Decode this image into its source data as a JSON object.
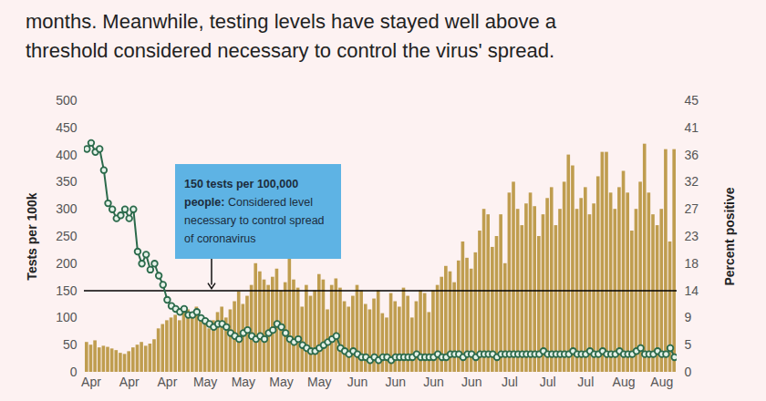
{
  "chart_data": {
    "type": "bar",
    "subtitle": "months. Meanwhile, testing levels have stayed well above a threshold considered necessary to control the virus' spread.",
    "categories": [
      null,
      "Apr",
      null,
      null,
      null,
      null,
      null,
      null,
      null,
      null,
      "Apr",
      null,
      null,
      null,
      null,
      null,
      null,
      null,
      null,
      "Apr",
      null,
      null,
      null,
      null,
      null,
      null,
      null,
      null,
      "May",
      null,
      null,
      null,
      null,
      null,
      null,
      null,
      null,
      "May",
      null,
      null,
      null,
      null,
      null,
      null,
      null,
      null,
      "May",
      null,
      null,
      null,
      null,
      null,
      null,
      null,
      null,
      "May",
      null,
      null,
      null,
      null,
      null,
      null,
      null,
      null,
      "Jun",
      null,
      null,
      null,
      null,
      null,
      null,
      null,
      null,
      "Jun",
      null,
      null,
      null,
      null,
      null,
      null,
      null,
      null,
      "Jun",
      null,
      null,
      null,
      null,
      null,
      null,
      null,
      null,
      "Jun",
      null,
      null,
      null,
      null,
      null,
      null,
      null,
      null,
      "Jul",
      null,
      null,
      null,
      null,
      null,
      null,
      null,
      null,
      "Jul",
      null,
      null,
      null,
      null,
      null,
      null,
      null,
      null,
      "Jul",
      null,
      null,
      null,
      null,
      null,
      null,
      null,
      null,
      "Aug",
      null,
      null,
      null,
      null,
      null,
      null,
      null,
      null,
      "Aug",
      null,
      null,
      null
    ],
    "series": [
      {
        "name": "Tests per 100k",
        "type": "bar",
        "color": "#bf9d4f",
        "values": [
          55,
          50,
          58,
          45,
          48,
          46,
          43,
          40,
          35,
          33,
          38,
          45,
          50,
          55,
          48,
          52,
          60,
          80,
          88,
          95,
          100,
          105,
          95,
          110,
          115,
          100,
          120,
          105,
          90,
          80,
          95,
          110,
          120,
          100,
          115,
          130,
          148,
          125,
          140,
          160,
          200,
          185,
          170,
          160,
          175,
          190,
          150,
          165,
          210,
          170,
          155,
          120,
          160,
          140,
          150,
          180,
          170,
          115,
          160,
          172,
          155,
          130,
          120,
          140,
          160,
          150,
          125,
          115,
          135,
          150,
          108,
          100,
          145,
          130,
          120,
          155,
          140,
          100,
          130,
          150,
          145,
          110,
          150,
          160,
          175,
          195,
          185,
          165,
          205,
          240,
          210,
          190,
          220,
          260,
          300,
          290,
          230,
          250,
          290,
          200,
          330,
          350,
          300,
          270,
          310,
          330,
          305,
          250,
          290,
          320,
          340,
          270,
          300,
          350,
          400,
          380,
          300,
          320,
          340,
          290,
          310,
          360,
          405,
          405,
          330,
          300,
          340,
          370,
          330,
          260,
          300,
          350,
          420,
          330,
          290,
          270,
          300,
          410,
          240,
          410
        ]
      },
      {
        "name": "Percent positive",
        "type": "line",
        "axis": "y2",
        "color": "#2b6a4b",
        "marker": "circle",
        "line_style": "solid",
        "values": [
          37,
          38,
          36.5,
          37,
          33.5,
          28,
          27,
          25.5,
          26,
          27,
          25.5,
          27,
          20,
          18,
          19.5,
          17,
          18,
          16,
          14.5,
          12,
          11,
          10.5,
          10,
          10.5,
          9.5,
          9.5,
          10,
          9,
          8.5,
          8,
          7.5,
          8,
          8,
          7.5,
          6.5,
          6,
          5.5,
          6.5,
          7,
          6,
          5.5,
          6,
          5.5,
          6.5,
          7,
          8,
          7.5,
          6.5,
          5.5,
          5,
          5.5,
          4.5,
          4,
          3.5,
          3.5,
          4,
          4.5,
          5,
          5.5,
          6,
          4,
          3.5,
          3,
          3.5,
          3,
          2.5,
          2.5,
          2,
          2.5,
          2,
          2.5,
          2.5,
          2,
          2.5,
          2.5,
          2.5,
          2.5,
          2.5,
          3,
          2.5,
          2.5,
          2.5,
          2.5,
          3,
          2.5,
          2.5,
          3,
          3,
          3,
          2.5,
          3,
          3,
          2.5,
          3,
          3,
          3,
          3,
          2.5,
          3,
          3,
          3,
          3,
          3,
          3,
          3,
          3,
          3,
          3,
          3.5,
          3,
          3,
          3,
          3,
          3,
          3,
          3.5,
          3,
          3,
          3,
          3.5,
          3,
          3,
          3.5,
          3,
          3,
          3,
          3.5,
          3,
          3,
          3,
          3.5,
          4,
          3,
          3,
          3,
          3.5,
          3,
          3,
          4,
          2.5
        ]
      }
    ],
    "ylim": [
      0,
      500
    ],
    "yticks": [
      0,
      50,
      100,
      150,
      200,
      250,
      300,
      350,
      400,
      450,
      500
    ],
    "y2lim": [
      0,
      45
    ],
    "y2ticks": [
      0,
      {
        "value": 4.5,
        "label": "5"
      },
      9,
      {
        "value": 13.5,
        "label": "14"
      },
      18,
      {
        "value": 22.5,
        "label": "23"
      },
      27,
      {
        "value": 31.5,
        "label": "32"
      },
      36,
      {
        "value": 40.5,
        "label": "41"
      },
      45
    ],
    "reference_line": {
      "value": 150,
      "color": "#000000"
    },
    "annotation": {
      "heading": "150 tests per 100,000 people:",
      "text": "Considered level necessary to control spread of coronavirus",
      "color": "#5eb3e4"
    },
    "grid": false
  }
}
